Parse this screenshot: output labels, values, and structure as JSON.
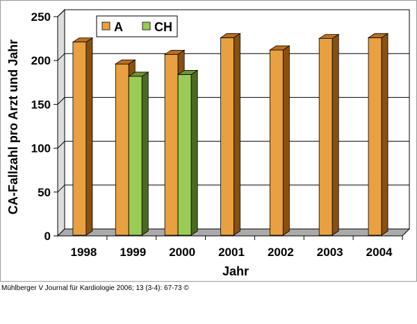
{
  "chart_data": {
    "type": "bar",
    "categories": [
      "1998",
      "1999",
      "2000",
      "2001",
      "2002",
      "2003",
      "2004"
    ],
    "series": [
      {
        "name": "A",
        "values": [
          221,
          196,
          207,
          226,
          212,
          225,
          226
        ],
        "color": "#e8a040",
        "side_color": "#8a5010",
        "top_color": "#b87020"
      },
      {
        "name": "CH",
        "values": [
          null,
          182,
          184,
          null,
          null,
          null,
          null
        ],
        "color": "#99cc55",
        "side_color": "#4a6a22",
        "top_color": "#6f9433"
      }
    ],
    "xlabel": "Jahr",
    "ylabel": "CA-Fallzahl pro Arzt und Jahr",
    "ylim": [
      0,
      250
    ],
    "yticks": [
      "0",
      "50",
      "100",
      "150",
      "200",
      "250"
    ],
    "grid": true,
    "legend_position": "top-left"
  },
  "citation": "Mühlberger V Journal für Kardiologie 2006; 13 (3-4): 67-73 ©"
}
